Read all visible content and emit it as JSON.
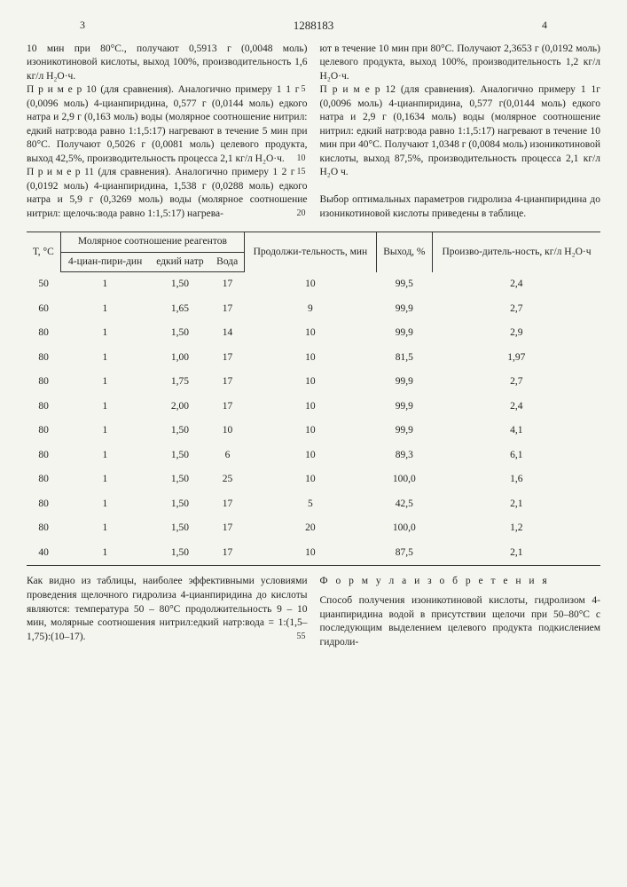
{
  "header": {
    "left_num": "3",
    "right_num": "4",
    "doc_number": "1288183"
  },
  "left_col": {
    "p1": "10 мин при 80°С., получают 0,5913 г (0,0048 моль) изоникотиновой кислоты, выход 100%, производительность 1,6 кг/л Н₂О·ч.",
    "p2_label": "П р и м е р  10 (для сравнения).",
    "p2": "Аналогично примеру 1 1 г (0,0096 моль) 4-цианпиридина, 0,577 г (0,0144 моль) едкого натра и 2,9 г (0,163 моль) воды (молярное соотношение нитрил: едкий натр:вода равно 1:1,5:17) нагревают в течение 5 мин при 80°С. Получают 0,5026 г (0,0081 моль) целевого продукта, выход 42,5%, производительность процесса 2,1 кг/л Н₂О·ч.",
    "p3_label": "П р и м е р  11 (для сравнения).",
    "p3": "Аналогично примеру 1 2 г (0,0192 моль) 4-цианпиридина, 1,538 г (0,0288 моль) едкого натра и 5,9 г (0,3269 моль) воды (молярное соотношение нитрил: щелочь:вода равно 1:1,5:17) нагрева-"
  },
  "right_col": {
    "p1": "ют в течение 10 мин при 80°С. Получают 2,3653 г (0,0192 моль) целевого продукта, выход 100%, производительность 1,2 кг/л Н₂О·ч.",
    "p2_label": "П р и м е р  12 (для сравнения).",
    "p2": "Аналогично примеру 1 1г (0,0096 моль) 4-цианпиридина, 0,577 г(0,0144 моль) едкого натра и 2,9 г (0,1634 моль) воды (молярное соотношение нитрил: едкий натр:вода равно 1:1,5:17) нагревают в течение 10 мин при 40°С. Получают 1,0348 г (0,0084 моль) изоникотиновой кислоты, выход 87,5%, производительность процесса 2,1 кг/л Н₂О ч.",
    "p3": "Выбор оптимальных параметров гидролиза 4-цианпиридина до изоникотиновой кислоты приведены в таблице."
  },
  "table": {
    "headers": {
      "temp": "Т, °С",
      "ratio": "Молярное соотношение реагентов",
      "sub1": "4-циан-пири-дин",
      "sub2": "едкий натр",
      "sub3": "Вода",
      "duration": "Продолжи-тельность, мин",
      "yield": "Выход, %",
      "prod": "Произво-дитель-ность, кг/л Н₂О·ч"
    },
    "rows": [
      [
        "50",
        "1",
        "1,50",
        "17",
        "10",
        "99,5",
        "2,4"
      ],
      [
        "60",
        "1",
        "1,65",
        "17",
        "9",
        "99,9",
        "2,7"
      ],
      [
        "80",
        "1",
        "1,50",
        "14",
        "10",
        "99,9",
        "2,9"
      ],
      [
        "80",
        "1",
        "1,00",
        "17",
        "10",
        "81,5",
        "1,97"
      ],
      [
        "80",
        "1",
        "1,75",
        "17",
        "10",
        "99,9",
        "2,7"
      ],
      [
        "80",
        "1",
        "2,00",
        "17",
        "10",
        "99,9",
        "2,4"
      ],
      [
        "80",
        "1",
        "1,50",
        "10",
        "10",
        "99,9",
        "4,1"
      ],
      [
        "80",
        "1",
        "1,50",
        "6",
        "10",
        "89,3",
        "6,1"
      ],
      [
        "80",
        "1",
        "1,50",
        "25",
        "10",
        "100,0",
        "1,6"
      ],
      [
        "80",
        "1",
        "1,50",
        "17",
        "5",
        "42,5",
        "2,1"
      ],
      [
        "80",
        "1",
        "1,50",
        "17",
        "20",
        "100,0",
        "1,2"
      ],
      [
        "40",
        "1",
        "1,50",
        "17",
        "10",
        "87,5",
        "2,1"
      ]
    ]
  },
  "bottom": {
    "left": "Как видно из таблицы, наиболее эффективными условиями проведения щелочного гидролиза 4-цианпиридина до кислоты являются: температура 50 – 80°С продолжительность 9 – 10 мин, молярные соотношения нитрил:едкий натр:вода = 1:(1,5–1,75):(10–17).",
    "formula_title": "Ф о р м у л а  и з о б р е т е н и я",
    "right": "Способ получения изоникотиновой кислоты, гидролизом 4-цианпиридина водой в присутствии щелочи при 50–80°С с последующим выделением целевого продукта подкислением гидроли-"
  },
  "markers": {
    "m5": "5",
    "m10": "10",
    "m15": "15",
    "m20": "20",
    "m55": "55"
  }
}
